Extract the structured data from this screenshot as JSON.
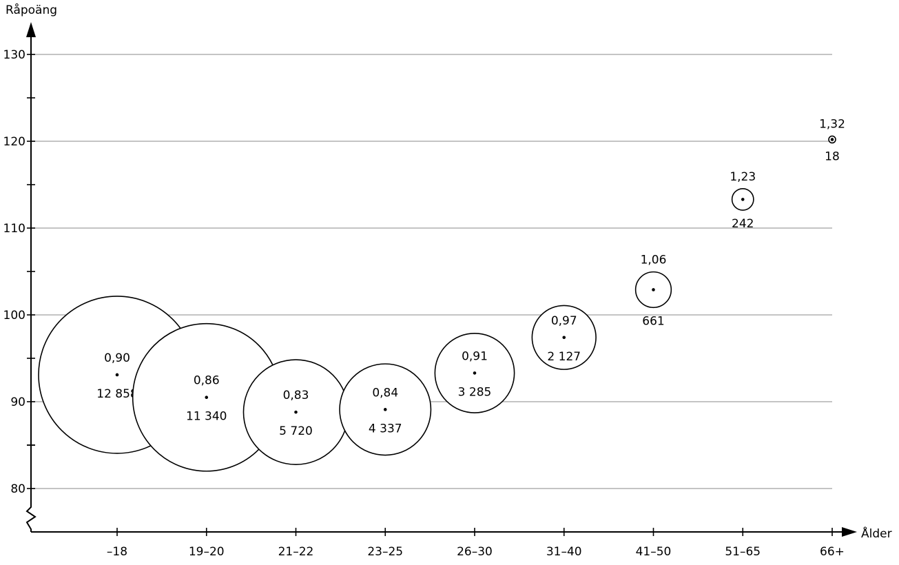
{
  "chart_data": {
    "type": "bubble",
    "ylabel": "Råpoäng",
    "xlabel": "Ålder",
    "yticks": [
      80,
      90,
      100,
      110,
      120,
      130
    ],
    "ylim": [
      75,
      135
    ],
    "y_axis_break": true,
    "grid": true,
    "categories": [
      "–18",
      "19–20",
      "21–22",
      "23–25",
      "26–30",
      "31–40",
      "41–50",
      "51–65",
      "66+"
    ],
    "points": [
      {
        "category": "–18",
        "y": 93.1,
        "ratio": "0,90",
        "count": "12 858",
        "n": 12858
      },
      {
        "category": "19–20",
        "y": 90.5,
        "ratio": "0,86",
        "count": "11 340",
        "n": 11340
      },
      {
        "category": "21–22",
        "y": 88.8,
        "ratio": "0,83",
        "count": "5 720",
        "n": 5720
      },
      {
        "category": "23–25",
        "y": 89.1,
        "ratio": "0,84",
        "count": "4 337",
        "n": 4337
      },
      {
        "category": "26–30",
        "y": 93.3,
        "ratio": "0,91",
        "count": "3 285",
        "n": 3285
      },
      {
        "category": "31–40",
        "y": 97.4,
        "ratio": "0,97",
        "count": "2 127",
        "n": 2127
      },
      {
        "category": "41–50",
        "y": 102.9,
        "ratio": "1,06",
        "count": "661",
        "n": 661
      },
      {
        "category": "51–65",
        "y": 113.3,
        "ratio": "1,23",
        "count": "242",
        "n": 242
      },
      {
        "category": "66+",
        "y": 120.2,
        "ratio": "1,32",
        "count": "18",
        "n": 18
      }
    ]
  }
}
